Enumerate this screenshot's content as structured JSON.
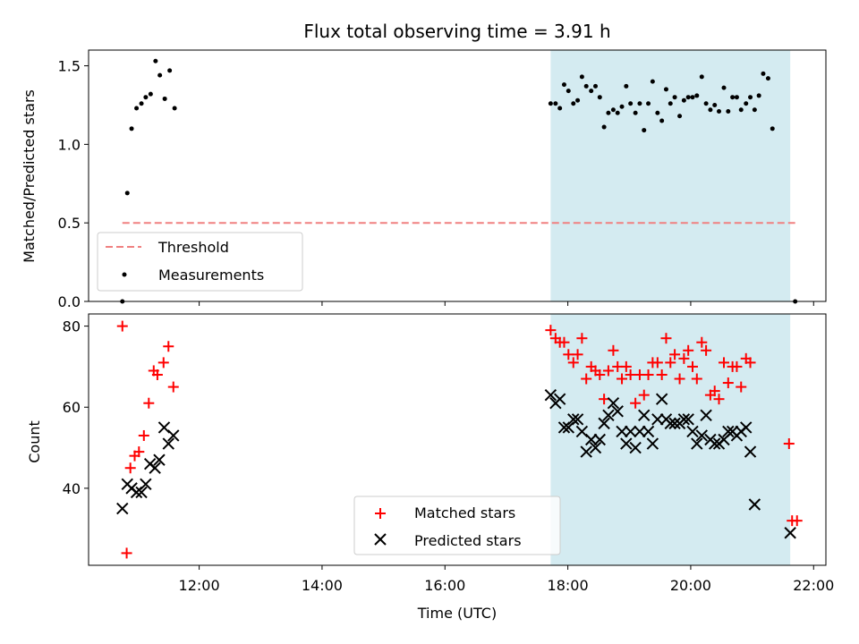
{
  "chart_data": [
    {
      "type": "scatter",
      "title": "Flux total observing time = 3.91 h",
      "xlabel": "",
      "ylabel": "Matched/Predicted stars",
      "xlim": [
        10.2,
        22.2
      ],
      "ylim": [
        0.0,
        1.6
      ],
      "yticks": [
        0.0,
        0.5,
        1.0,
        1.5
      ],
      "ytick_labels": [
        "0.0",
        "0.5",
        "1.0",
        "1.5"
      ],
      "shaded_region": {
        "x_start": 17.72,
        "x_end": 21.62,
        "color": "#d4ebf1"
      },
      "threshold": {
        "label": "Threshold",
        "value": 0.5,
        "x_start": 10.75,
        "x_end": 21.7,
        "color": "#f08080"
      },
      "legend": [
        "Threshold",
        "Measurements"
      ],
      "legend_position": "lower-left",
      "series": [
        {
          "name": "Measurements",
          "color": "#000000",
          "points": [
            [
              10.75,
              0.0
            ],
            [
              10.83,
              0.69
            ],
            [
              10.9,
              1.1
            ],
            [
              10.98,
              1.23
            ],
            [
              11.06,
              1.26
            ],
            [
              11.13,
              1.3
            ],
            [
              11.21,
              1.32
            ],
            [
              11.29,
              1.53
            ],
            [
              11.36,
              1.44
            ],
            [
              11.44,
              1.29
            ],
            [
              11.52,
              1.47
            ],
            [
              11.6,
              1.23
            ],
            [
              17.72,
              1.26
            ],
            [
              17.8,
              1.26
            ],
            [
              17.87,
              1.23
            ],
            [
              17.94,
              1.38
            ],
            [
              18.01,
              1.34
            ],
            [
              18.09,
              1.26
            ],
            [
              18.16,
              1.28
            ],
            [
              18.23,
              1.43
            ],
            [
              18.3,
              1.37
            ],
            [
              18.38,
              1.34
            ],
            [
              18.45,
              1.37
            ],
            [
              18.52,
              1.3
            ],
            [
              18.59,
              1.11
            ],
            [
              18.66,
              1.2
            ],
            [
              18.74,
              1.22
            ],
            [
              18.81,
              1.2
            ],
            [
              18.88,
              1.24
            ],
            [
              18.95,
              1.37
            ],
            [
              19.02,
              1.26
            ],
            [
              19.1,
              1.2
            ],
            [
              19.17,
              1.26
            ],
            [
              19.24,
              1.09
            ],
            [
              19.31,
              1.26
            ],
            [
              19.38,
              1.4
            ],
            [
              19.46,
              1.2
            ],
            [
              19.53,
              1.15
            ],
            [
              19.6,
              1.35
            ],
            [
              19.67,
              1.26
            ],
            [
              19.74,
              1.3
            ],
            [
              19.82,
              1.18
            ],
            [
              19.89,
              1.28
            ],
            [
              19.96,
              1.3
            ],
            [
              20.03,
              1.3
            ],
            [
              20.1,
              1.31
            ],
            [
              20.18,
              1.43
            ],
            [
              20.25,
              1.26
            ],
            [
              20.32,
              1.22
            ],
            [
              20.39,
              1.25
            ],
            [
              20.46,
              1.21
            ],
            [
              20.54,
              1.36
            ],
            [
              20.61,
              1.21
            ],
            [
              20.68,
              1.3
            ],
            [
              20.75,
              1.3
            ],
            [
              20.82,
              1.22
            ],
            [
              20.9,
              1.26
            ],
            [
              20.97,
              1.3
            ],
            [
              21.04,
              1.22
            ],
            [
              21.11,
              1.31
            ],
            [
              21.18,
              1.45
            ],
            [
              21.26,
              1.42
            ],
            [
              21.33,
              1.1
            ],
            [
              21.7,
              0.0
            ]
          ]
        }
      ]
    },
    {
      "type": "scatter",
      "title": "",
      "xlabel": "Time (UTC)",
      "ylabel": "Count",
      "xlim": [
        10.2,
        22.2
      ],
      "ylim": [
        21,
        83
      ],
      "yticks": [
        40,
        60,
        80
      ],
      "ytick_labels": [
        "40",
        "60",
        "80"
      ],
      "xticks": [
        12,
        14,
        16,
        18,
        20,
        22
      ],
      "xtick_labels": [
        "12:00",
        "14:00",
        "16:00",
        "18:00",
        "20:00",
        "22:00"
      ],
      "shaded_region": {
        "x_start": 17.72,
        "x_end": 21.62,
        "color": "#d4ebf1"
      },
      "legend": [
        "Matched stars",
        "Predicted stars"
      ],
      "legend_position": "lower-center",
      "series": [
        {
          "name": "Matched stars",
          "marker": "plus",
          "color": "#ff0000",
          "points": [
            [
              10.75,
              80
            ],
            [
              10.82,
              24
            ],
            [
              10.88,
              45
            ],
            [
              10.95,
              48
            ],
            [
              11.02,
              49
            ],
            [
              11.1,
              53
            ],
            [
              11.18,
              61
            ],
            [
              11.26,
              69
            ],
            [
              11.32,
              68
            ],
            [
              11.42,
              71
            ],
            [
              11.5,
              75
            ],
            [
              11.58,
              65
            ],
            [
              17.72,
              79
            ],
            [
              17.8,
              77
            ],
            [
              17.87,
              76
            ],
            [
              17.94,
              76
            ],
            [
              18.01,
              73
            ],
            [
              18.09,
              71
            ],
            [
              18.16,
              73
            ],
            [
              18.23,
              77
            ],
            [
              18.3,
              67
            ],
            [
              18.38,
              70
            ],
            [
              18.45,
              69
            ],
            [
              18.52,
              68
            ],
            [
              18.59,
              62
            ],
            [
              18.66,
              69
            ],
            [
              18.74,
              74
            ],
            [
              18.81,
              70
            ],
            [
              18.88,
              67
            ],
            [
              18.95,
              70
            ],
            [
              19.02,
              68
            ],
            [
              19.1,
              61
            ],
            [
              19.17,
              68
            ],
            [
              19.24,
              63
            ],
            [
              19.31,
              68
            ],
            [
              19.38,
              71
            ],
            [
              19.46,
              71
            ],
            [
              19.53,
              68
            ],
            [
              19.6,
              77
            ],
            [
              19.67,
              71
            ],
            [
              19.74,
              73
            ],
            [
              19.82,
              67
            ],
            [
              19.89,
              72
            ],
            [
              19.96,
              74
            ],
            [
              20.03,
              70
            ],
            [
              20.1,
              67
            ],
            [
              20.18,
              76
            ],
            [
              20.25,
              74
            ],
            [
              20.32,
              63
            ],
            [
              20.39,
              64
            ],
            [
              20.46,
              62
            ],
            [
              20.54,
              71
            ],
            [
              20.61,
              66
            ],
            [
              20.68,
              70
            ],
            [
              20.75,
              70
            ],
            [
              20.82,
              65
            ],
            [
              20.9,
              72
            ],
            [
              20.97,
              71
            ],
            [
              21.6,
              51
            ],
            [
              21.65,
              32
            ],
            [
              21.73,
              32
            ]
          ]
        },
        {
          "name": "Predicted stars",
          "marker": "x",
          "color": "#000000",
          "points": [
            [
              10.75,
              35
            ],
            [
              10.83,
              41
            ],
            [
              10.9,
              40
            ],
            [
              10.98,
              39
            ],
            [
              11.06,
              39
            ],
            [
              11.13,
              41
            ],
            [
              11.2,
              46
            ],
            [
              11.28,
              45
            ],
            [
              11.35,
              47
            ],
            [
              11.43,
              55
            ],
            [
              11.5,
              51
            ],
            [
              11.58,
              53
            ],
            [
              17.72,
              63
            ],
            [
              17.8,
              61
            ],
            [
              17.87,
              62
            ],
            [
              17.94,
              55
            ],
            [
              18.01,
              55
            ],
            [
              18.09,
              57
            ],
            [
              18.16,
              57
            ],
            [
              18.23,
              54
            ],
            [
              18.3,
              49
            ],
            [
              18.38,
              52
            ],
            [
              18.45,
              50
            ],
            [
              18.52,
              52
            ],
            [
              18.59,
              56
            ],
            [
              18.66,
              58
            ],
            [
              18.74,
              61
            ],
            [
              18.81,
              59
            ],
            [
              18.88,
              54
            ],
            [
              18.95,
              51
            ],
            [
              19.02,
              54
            ],
            [
              19.1,
              50
            ],
            [
              19.17,
              54
            ],
            [
              19.24,
              58
            ],
            [
              19.31,
              54
            ],
            [
              19.38,
              51
            ],
            [
              19.46,
              57
            ],
            [
              19.53,
              62
            ],
            [
              19.6,
              57
            ],
            [
              19.67,
              56
            ],
            [
              19.74,
              56
            ],
            [
              19.82,
              56
            ],
            [
              19.89,
              57
            ],
            [
              19.96,
              57
            ],
            [
              20.03,
              54
            ],
            [
              20.1,
              51
            ],
            [
              20.18,
              53
            ],
            [
              20.25,
              58
            ],
            [
              20.32,
              52
            ],
            [
              20.39,
              51
            ],
            [
              20.46,
              51
            ],
            [
              20.54,
              52
            ],
            [
              20.61,
              54
            ],
            [
              20.68,
              54
            ],
            [
              20.75,
              53
            ],
            [
              20.82,
              54
            ],
            [
              20.9,
              55
            ],
            [
              20.97,
              49
            ],
            [
              21.04,
              36
            ],
            [
              21.62,
              29
            ]
          ]
        }
      ]
    }
  ]
}
